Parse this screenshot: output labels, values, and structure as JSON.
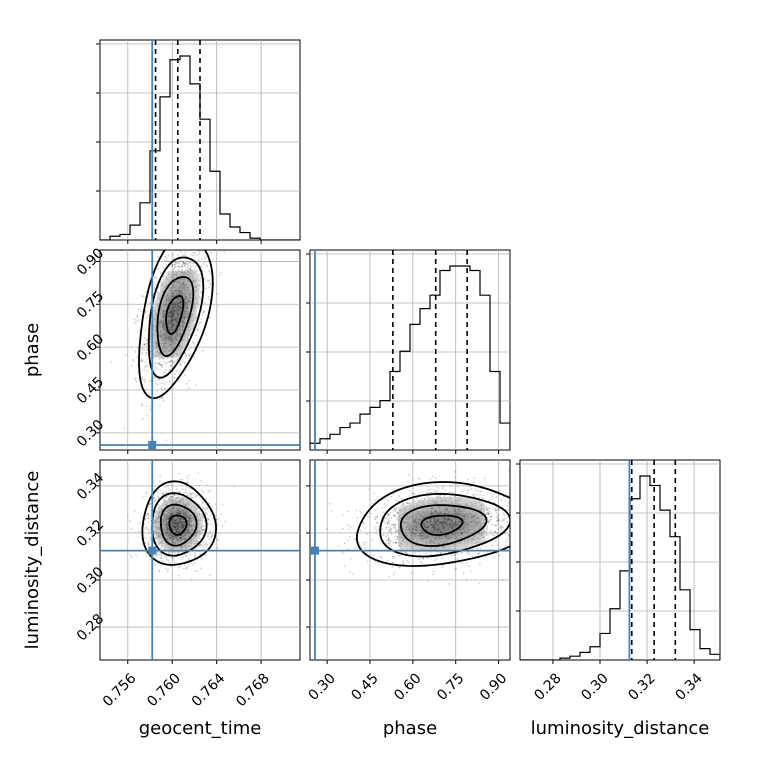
{
  "chart_data": {
    "type": "corner",
    "parameters": [
      "geocent_time",
      "phase",
      "luminosity_distance"
    ],
    "axes": {
      "geocent_time": {
        "range": [
          0.7535,
          0.7715
        ],
        "ticks": [
          "0.756",
          "0.760",
          "0.764",
          "0.768"
        ]
      },
      "phase": {
        "range": [
          0.24,
          0.94
        ],
        "ticks": [
          "0.30",
          "0.45",
          "0.60",
          "0.75",
          "0.90"
        ]
      },
      "luminosity_distance": {
        "range": [
          0.266,
          0.351
        ],
        "ticks": [
          "0.28",
          "0.30",
          "0.32",
          "0.34"
        ]
      }
    },
    "truth": {
      "geocent_time": 0.7582,
      "phase": 0.2575,
      "luminosity_distance": 0.3125,
      "color": "#4682b4"
    },
    "quantiles": {
      "geocent_time": [
        0.7585,
        0.7605,
        0.7625
      ],
      "phase": [
        0.53,
        0.68,
        0.79
      ],
      "luminosity_distance": [
        0.3135,
        0.323,
        0.332
      ]
    },
    "histograms": {
      "geocent_time": {
        "edges_start": 0.7535,
        "bin_width": 0.0009,
        "counts": [
          0,
          2,
          3,
          8,
          20,
          48,
          77,
          97,
          99,
          84,
          65,
          37,
          14,
          7,
          4,
          1,
          0,
          0,
          0,
          0
        ]
      },
      "phase": {
        "edges_start": 0.24,
        "bin_width": 0.035,
        "counts": [
          3,
          5,
          7,
          10,
          12,
          16,
          19,
          22,
          35,
          44,
          56,
          63,
          69,
          80,
          82,
          82,
          80,
          69,
          35,
          12
        ]
      },
      "luminosity_distance": {
        "edges_start": 0.266,
        "bin_width": 0.00425,
        "counts": [
          0,
          0,
          0,
          0,
          1,
          2,
          4,
          7,
          14,
          27,
          47,
          85,
          97,
          92,
          79,
          65,
          37,
          16,
          6,
          3
        ]
      }
    },
    "density_2d": [
      {
        "x": "geocent_time",
        "y": "phase",
        "center": [
          0.7602,
          0.715
        ],
        "sigma": [
          0.0014,
          0.12
        ],
        "rho": 0.45
      },
      {
        "x": "geocent_time",
        "y": "luminosity_distance",
        "center": [
          0.7605,
          0.3235
        ],
        "sigma": [
          0.0014,
          0.0075
        ],
        "rho": 0.0
      },
      {
        "x": "phase",
        "y": "luminosity_distance",
        "center": [
          0.7,
          0.3235
        ],
        "sigma": [
          0.13,
          0.0075
        ],
        "rho": 0.15
      }
    ],
    "grid": true,
    "colors": {
      "contours": "#000000",
      "histogram": "#000000",
      "points": "#000000"
    }
  }
}
